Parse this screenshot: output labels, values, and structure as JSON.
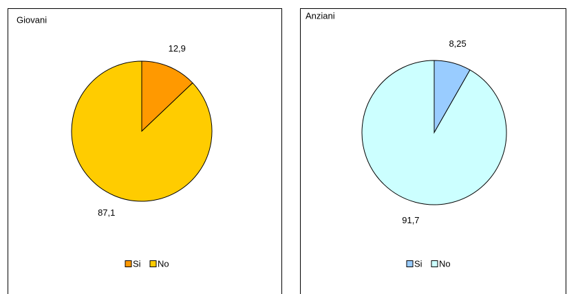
{
  "chart_data": [
    {
      "type": "pie",
      "title": "Giovani",
      "categories": [
        "Si",
        "No"
      ],
      "values": [
        12.9,
        87.1
      ],
      "value_labels": [
        "12,9",
        "87,1"
      ],
      "colors": [
        "#ff9900",
        "#ffcc00"
      ],
      "legend": "bottom"
    },
    {
      "type": "pie",
      "title": "Anziani",
      "categories": [
        "Si",
        "No"
      ],
      "values": [
        8.25,
        91.7
      ],
      "value_labels": [
        "8,25",
        "91,7"
      ],
      "colors": [
        "#99ccff",
        "#ccffff"
      ],
      "legend": "bottom"
    }
  ]
}
